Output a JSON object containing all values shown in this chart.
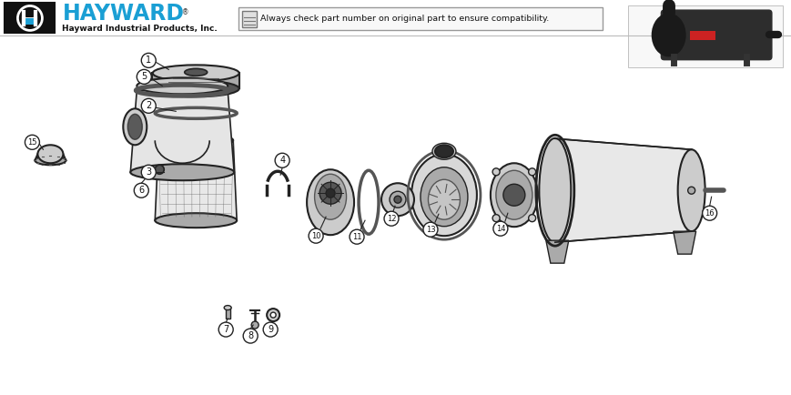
{
  "bg_color": "#ffffff",
  "hayward_blue": "#1a9fd4",
  "title_text": "HAYWARD",
  "subtitle_text": "Hayward Industrial Products, Inc.",
  "notice_text": "Always check part number on original part to ensure compatibility.",
  "fig_width": 8.7,
  "fig_height": 4.34,
  "dpi": 100,
  "edge_color": "#222222",
  "dark_fill": "#2a2a2a",
  "med_fill": "#555555",
  "light_fill": "#aaaaaa",
  "lighter_fill": "#cccccc",
  "white_fill": "#ffffff"
}
